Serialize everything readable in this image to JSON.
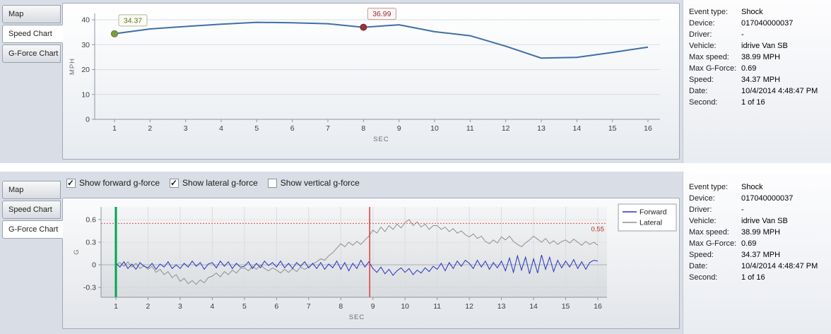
{
  "top_panel": {
    "tabs": [
      {
        "label": "Map",
        "active": false
      },
      {
        "label": "Speed Chart",
        "active": true
      },
      {
        "label": "G-Force Chart",
        "active": false
      }
    ]
  },
  "bottom_panel": {
    "tabs": [
      {
        "label": "Map",
        "active": false
      },
      {
        "label": "Speed Chart",
        "active": false
      },
      {
        "label": "G-Force Chart",
        "active": true
      }
    ],
    "checkboxes": [
      {
        "label": "Show forward g-force",
        "checked": true
      },
      {
        "label": "Show lateral g-force",
        "checked": true
      },
      {
        "label": "Show vertical g-force",
        "checked": false
      }
    ]
  },
  "info": {
    "rows": [
      {
        "label": "Event type:",
        "value": "Shock"
      },
      {
        "label": "Device:",
        "value": "017040000037"
      },
      {
        "label": "Driver:",
        "value": "-"
      },
      {
        "label": "Vehicle:",
        "value": "idrive Van SB"
      },
      {
        "label": "Max speed:",
        "value": "38.99 MPH"
      },
      {
        "label": "Max G-Force:",
        "value": "0.69"
      },
      {
        "label": "Speed:",
        "value": "34.37 MPH"
      },
      {
        "label": "Date:",
        "value": "10/4/2014 4:48:47 PM"
      },
      {
        "label": "Second:",
        "value": "1 of 16"
      }
    ]
  },
  "chart_data": [
    {
      "type": "line",
      "title": "Speed Chart",
      "xlabel": "SEC",
      "ylabel": "MPH",
      "x": [
        1,
        2,
        3,
        4,
        5,
        6,
        7,
        8,
        9,
        10,
        11,
        12,
        13,
        14,
        15,
        16
      ],
      "values": [
        34.37,
        36.3,
        37.3,
        38.2,
        38.99,
        38.8,
        38.4,
        36.99,
        38.0,
        35.2,
        33.6,
        29.4,
        24.6,
        24.9,
        26.9,
        29.0
      ],
      "ylim": [
        0,
        40
      ],
      "yticks": [
        0,
        10,
        20,
        30,
        40
      ],
      "line_color": "#3f6fa8",
      "grid": "horizontal",
      "markers": [
        {
          "x": 1,
          "y": 34.37,
          "label": "34.37",
          "dot_color": "#7d9c40",
          "dot_stroke": "#5f7a2c",
          "text_color": "#5c6e28",
          "box_fill": "#fcfdf3",
          "box_stroke": "#b3b79d"
        },
        {
          "x": 8,
          "y": 36.99,
          "label": "36.99",
          "dot_color": "#96353c",
          "dot_stroke": "#732830",
          "text_color": "#8c2f36",
          "box_fill": "#fdf6f5",
          "box_stroke": "#c39a9a"
        }
      ]
    },
    {
      "type": "line",
      "title": "G-Force Chart",
      "xlabel": "SEC",
      "ylabel": "G",
      "x_start": 1,
      "x_step": 0.125,
      "xticks": [
        1,
        2,
        3,
        4,
        5,
        6,
        7,
        8,
        9,
        10,
        11,
        12,
        13,
        14,
        15,
        16
      ],
      "ylim": [
        -0.45,
        0.75
      ],
      "yticks": [
        -0.3,
        0,
        0.3,
        0.6
      ],
      "legend": [
        "Forward",
        "Lateral"
      ],
      "legend_position": "top-right",
      "threshold": {
        "y": 0.55,
        "label": "0.55",
        "color": "#d9534f"
      },
      "vlines": [
        {
          "x": 1,
          "color": "#00a651",
          "width": 3,
          "name": "current-second-cursor"
        },
        {
          "x": 8.9,
          "color": "#e03a3a",
          "width": 1.5,
          "name": "event-cursor"
        }
      ],
      "series": [
        {
          "name": "Forward",
          "color": "#2433c0",
          "values": [
            0.02,
            -0.03,
            0.04,
            -0.05,
            0.01,
            -0.06,
            0.03,
            -0.02,
            -0.04,
            0.02,
            -0.06,
            0.01,
            -0.03,
            0.04,
            -0.05,
            0.0,
            -0.05,
            0.02,
            -0.03,
            0.05,
            -0.02,
            0.03,
            -0.06,
            0.01,
            0.03,
            -0.04,
            0.05,
            -0.02,
            0.04,
            -0.05,
            0.02,
            -0.03,
            -0.02,
            0.04,
            -0.05,
            0.02,
            -0.04,
            0.05,
            -0.01,
            0.03,
            -0.03,
            0.05,
            -0.04,
            0.02,
            -0.05,
            0.03,
            -0.02,
            0.04,
            -0.04,
            0.02,
            -0.05,
            0.03,
            -0.06,
            0.01,
            -0.04,
            0.05,
            -0.06,
            0.03,
            -0.08,
            0.02,
            -0.05,
            0.06,
            -0.03,
            0.04,
            -0.05,
            -0.1,
            -0.03,
            -0.12,
            -0.06,
            -0.14,
            -0.08,
            -0.04,
            -0.1,
            -0.05,
            -0.13,
            -0.07,
            -0.11,
            -0.04,
            -0.09,
            -0.02,
            -0.06,
            0.02,
            -0.08,
            0.03,
            -0.05,
            0.05,
            -0.02,
            0.06,
            0.02,
            -0.05,
            0.06,
            -0.03,
            0.05,
            -0.06,
            0.03,
            -0.04,
            0.05,
            -0.08,
            0.09,
            -0.1,
            0.12,
            -0.07,
            0.1,
            -0.12,
            0.08,
            -0.11,
            0.13,
            -0.06,
            0.1,
            -0.09,
            0.06,
            -0.04,
            0.05,
            -0.03,
            0.07,
            -0.05,
            0.04,
            -0.06,
            0.03,
            0.06,
            0.05
          ]
        },
        {
          "name": "Lateral",
          "color": "#8f8f8f",
          "values": [
            0.0,
            0.03,
            -0.02,
            0.04,
            -0.03,
            0.02,
            -0.05,
            -0.01,
            -0.06,
            -0.02,
            -0.1,
            -0.06,
            -0.13,
            -0.09,
            -0.17,
            -0.13,
            -0.22,
            -0.18,
            -0.25,
            -0.21,
            -0.26,
            -0.2,
            -0.24,
            -0.17,
            -0.15,
            -0.11,
            -0.16,
            -0.09,
            -0.13,
            -0.07,
            -0.11,
            -0.05,
            -0.04,
            -0.08,
            -0.02,
            -0.06,
            0.0,
            -0.05,
            -0.08,
            -0.04,
            -0.07,
            -0.11,
            -0.06,
            -0.1,
            -0.05,
            -0.09,
            -0.03,
            -0.06,
            -0.03,
            0.01,
            0.04,
            0.08,
            0.06,
            0.12,
            0.16,
            0.22,
            0.28,
            0.24,
            0.3,
            0.26,
            0.31,
            0.27,
            0.33,
            0.38,
            0.46,
            0.42,
            0.5,
            0.44,
            0.52,
            0.47,
            0.54,
            0.49,
            0.56,
            0.6,
            0.52,
            0.57,
            0.5,
            0.54,
            0.47,
            0.52,
            0.52,
            0.47,
            0.5,
            0.44,
            0.48,
            0.42,
            0.45,
            0.4,
            0.37,
            0.41,
            0.35,
            0.38,
            0.31,
            0.28,
            0.33,
            0.29,
            0.37,
            0.33,
            0.38,
            0.31,
            0.27,
            0.24,
            0.29,
            0.33,
            0.38,
            0.34,
            0.3,
            0.35,
            0.28,
            0.32,
            0.27,
            0.31,
            0.33,
            0.29,
            0.34,
            0.3,
            0.26,
            0.31,
            0.27,
            0.3,
            0.26
          ]
        }
      ]
    }
  ]
}
